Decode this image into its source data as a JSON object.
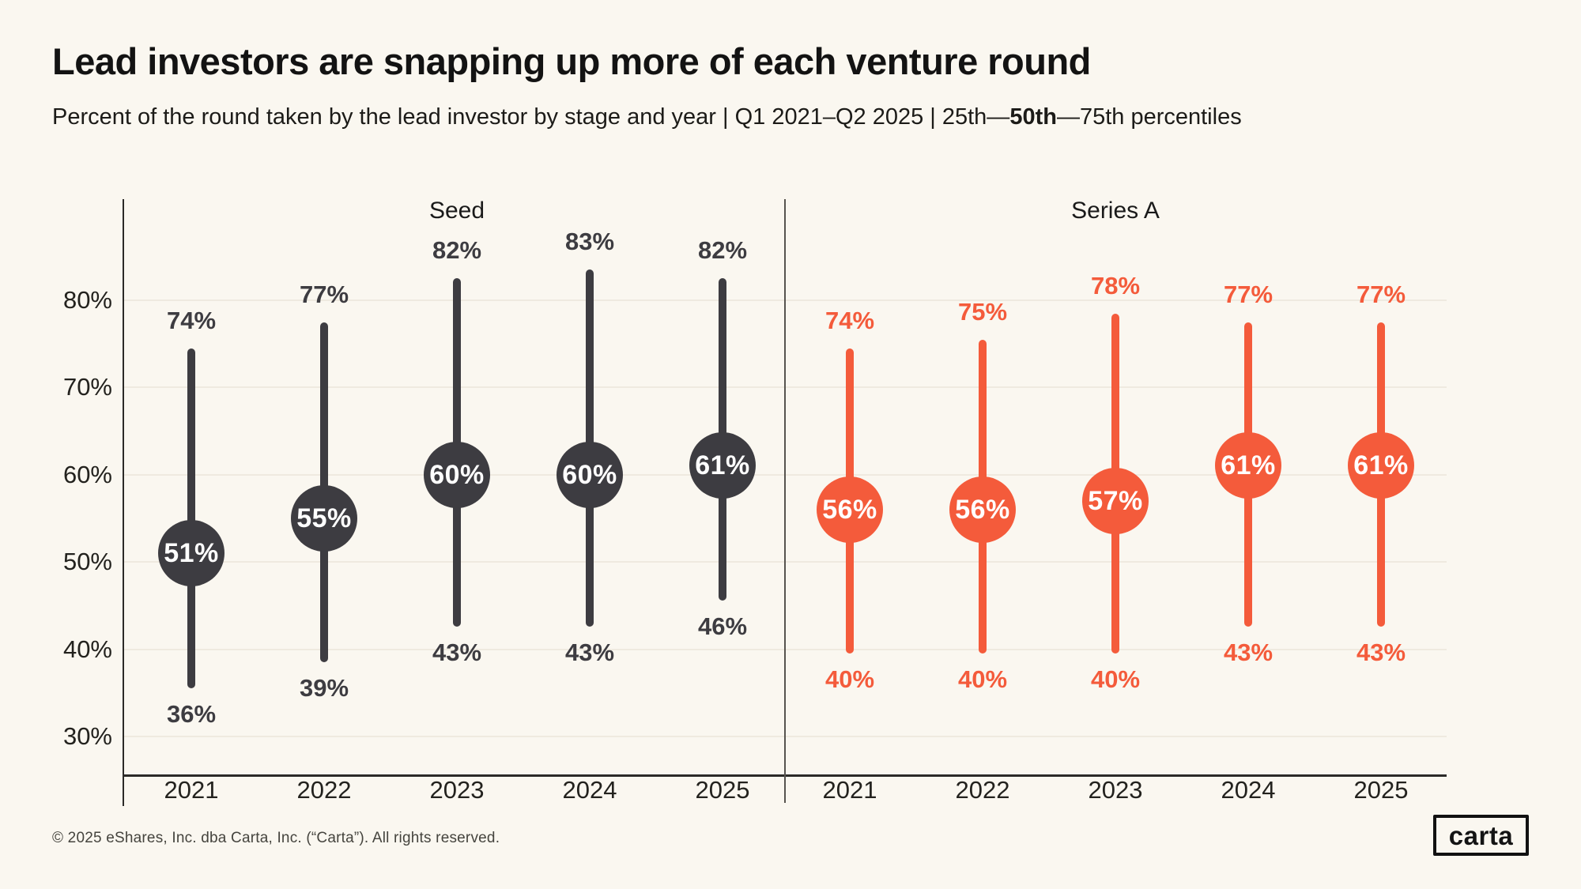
{
  "header": {
    "title": "Lead investors are snapping up more of each venture round",
    "subtitle_pre": "Percent of the round taken by the lead investor by stage and year | Q1 2021–Q2 2025 | 25th—",
    "subtitle_bold": "50th",
    "subtitle_post": "—75th percentiles"
  },
  "footer": {
    "copyright": "© 2025 eShares, Inc. dba Carta, Inc. (“Carta”). All rights reserved."
  },
  "logo": {
    "text": "carta"
  },
  "colors": {
    "background": "#FAF7F0",
    "seed": "#3D3C41",
    "series_a": "#F45B3B",
    "gridline": "#EFEAE0",
    "axis": "#2B2A28"
  },
  "chart_data": {
    "type": "dumbbell-range",
    "title": "Percent of the round taken by the lead investor by stage and year",
    "value_suffix": "%",
    "y_axis": {
      "ticks": [
        30,
        40,
        50,
        60,
        70,
        80
      ],
      "tick_suffix": "%",
      "range_shown": [
        30,
        80
      ],
      "grid": true
    },
    "categories": [
      "2021",
      "2022",
      "2023",
      "2024",
      "2025"
    ],
    "panels": [
      {
        "label": "Seed",
        "color": "#3D3C41",
        "series": {
          "p25": [
            36,
            39,
            43,
            43,
            46
          ],
          "p50": [
            51,
            55,
            60,
            60,
            61
          ],
          "p75": [
            74,
            77,
            82,
            83,
            82
          ]
        }
      },
      {
        "label": "Series A",
        "color": "#F45B3B",
        "series": {
          "p25": [
            40,
            40,
            40,
            43,
            43
          ],
          "p50": [
            56,
            56,
            57,
            61,
            61
          ],
          "p75": [
            74,
            75,
            78,
            77,
            77
          ]
        }
      }
    ]
  }
}
